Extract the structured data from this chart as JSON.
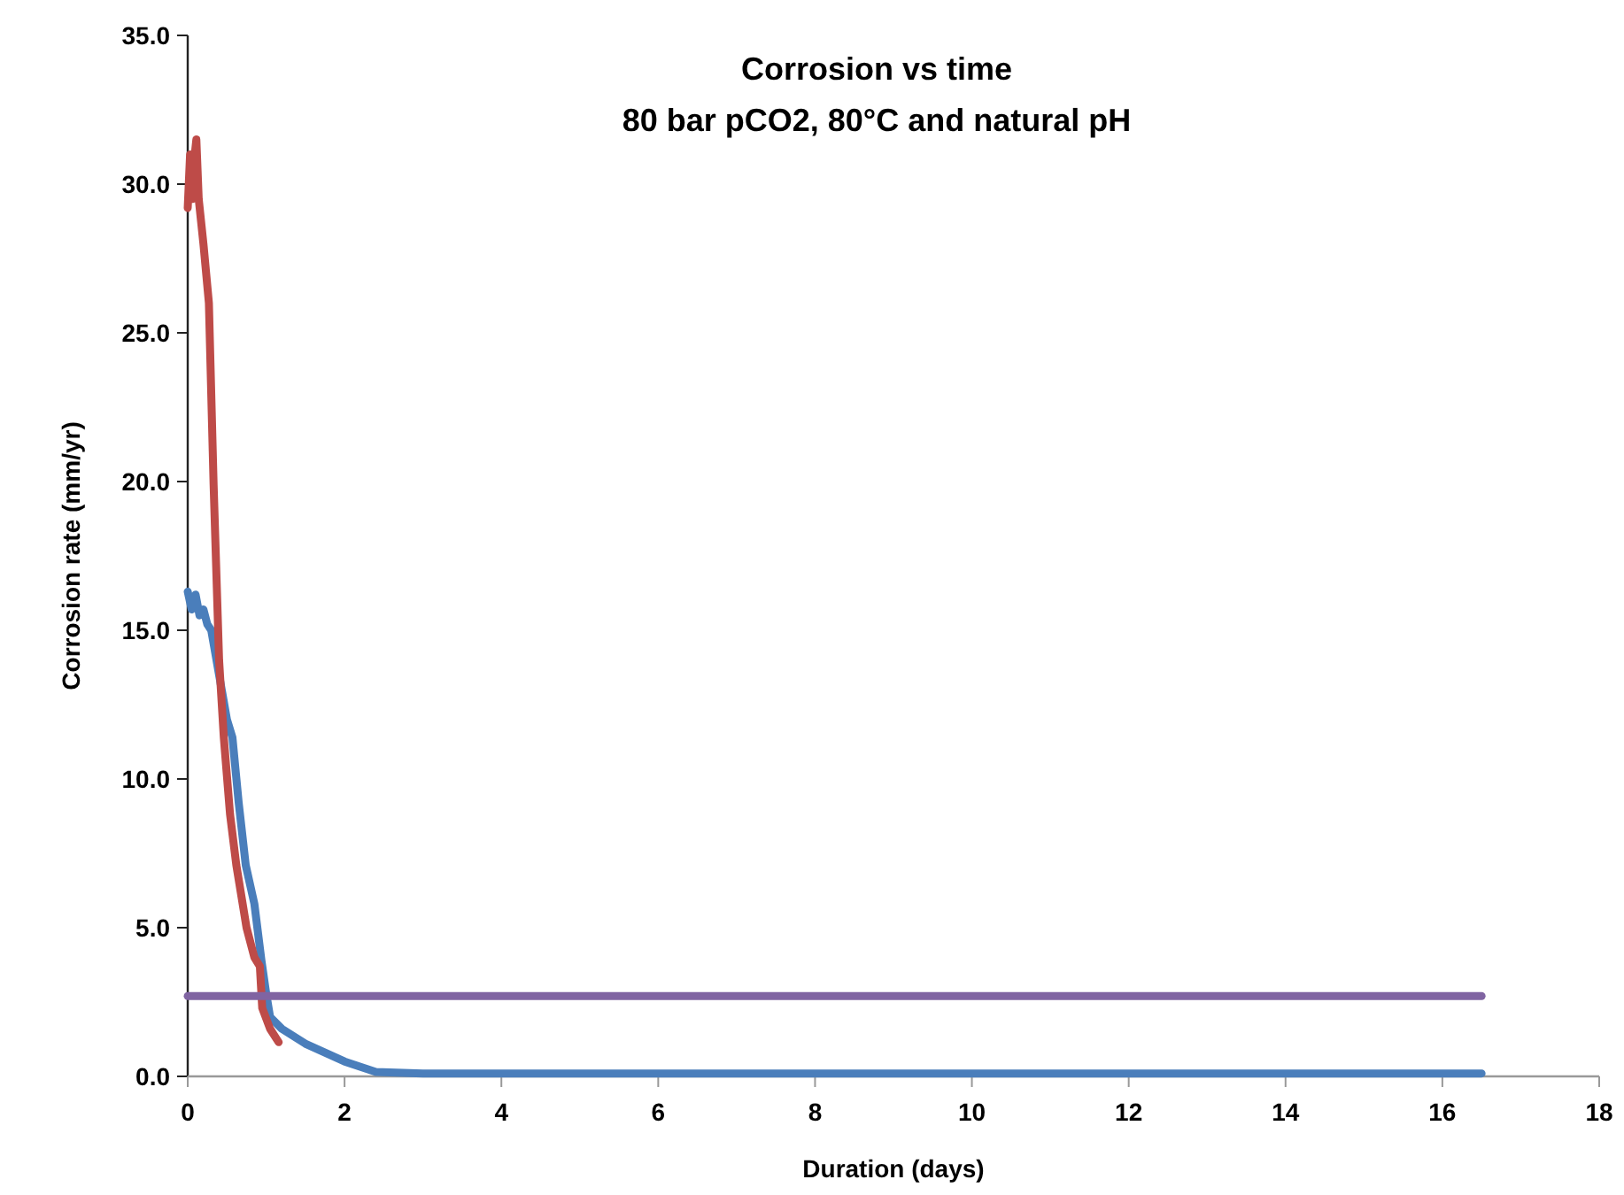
{
  "chart_data": {
    "type": "line",
    "title": "Corrosion vs time",
    "subtitle": "80 bar pCO2, 80°C and natural pH",
    "xlabel": "Duration (days)",
    "ylabel": "Corrosion rate (mm/yr)",
    "xlim": [
      0,
      18
    ],
    "xticks": [
      0,
      2,
      4,
      6,
      8,
      10,
      12,
      14,
      16,
      18
    ],
    "ylim": [
      0,
      35
    ],
    "yticks": [
      {
        "value": 0,
        "label": "0.0"
      },
      {
        "value": 5,
        "label": "5.0"
      },
      {
        "value": 10,
        "label": "10.0"
      },
      {
        "value": 15,
        "label": "15.0"
      },
      {
        "value": 20,
        "label": "20.0"
      },
      {
        "value": 25,
        "label": "25.0"
      },
      {
        "value": 30,
        "label": "30.0"
      },
      {
        "value": 35,
        "label": "35.0"
      }
    ],
    "grid": false,
    "marker": "none",
    "line_style": "solid",
    "series": [
      {
        "color": "#4a7ebb",
        "x": [
          0,
          0.05,
          0.1,
          0.15,
          0.2,
          0.25,
          0.3,
          0.4,
          0.5,
          0.57,
          0.65,
          0.74,
          0.85,
          0.94,
          1.0,
          1.05,
          1.2,
          1.5,
          2.0,
          2.4,
          3,
          4,
          6,
          8,
          10,
          12,
          14,
          16,
          16.5
        ],
        "values": [
          16.3,
          15.7,
          16.2,
          15.5,
          15.7,
          15.2,
          15.0,
          13.5,
          12.0,
          11.4,
          9.2,
          7.1,
          5.8,
          3.9,
          2.8,
          2.0,
          1.6,
          1.1,
          0.5,
          0.15,
          0.1,
          0.1,
          0.1,
          0.1,
          0.1,
          0.1,
          0.1,
          0.1,
          0.1
        ]
      },
      {
        "color": "#be4b48",
        "x": [
          0,
          0.03,
          0.06,
          0.09,
          0.11,
          0.14,
          0.2,
          0.27,
          0.33,
          0.4,
          0.46,
          0.54,
          0.62,
          0.75,
          0.85,
          0.92,
          0.95,
          1.05,
          1.16
        ],
        "values": [
          29.2,
          31.0,
          29.5,
          31.0,
          31.5,
          29.5,
          28.0,
          26.0,
          19.9,
          14.0,
          11.4,
          8.8,
          7.1,
          5.0,
          4.0,
          3.7,
          2.3,
          1.6,
          1.15
        ]
      },
      {
        "color": "#8064a2",
        "x": [
          0,
          16.5
        ],
        "values": [
          2.7,
          2.7
        ]
      }
    ]
  }
}
